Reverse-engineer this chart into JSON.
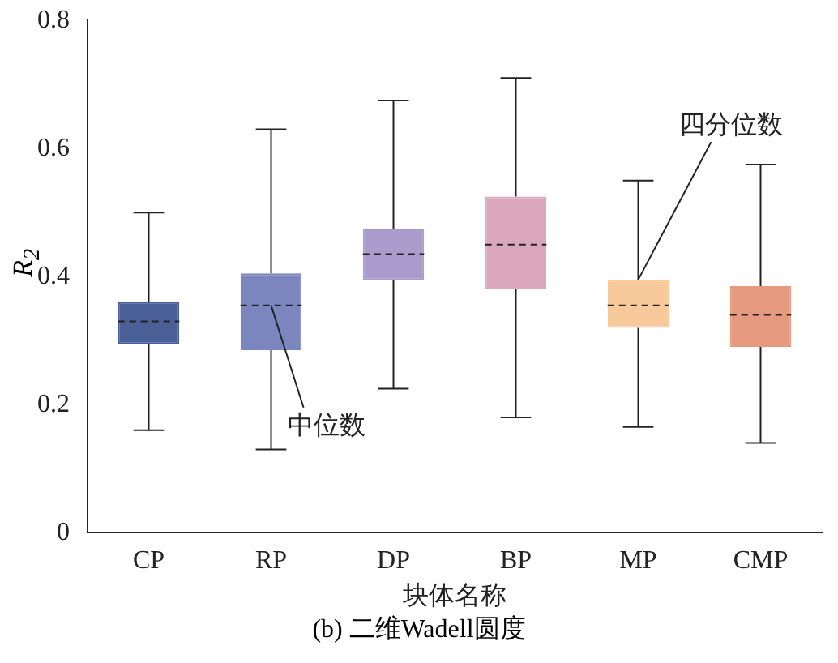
{
  "chart_data": {
    "type": "box",
    "title": "(b) 二维Wadell圆度",
    "xlabel": "块体名称",
    "ylabel": "R$_{2}$",
    "categories": [
      "CP",
      "RP",
      "DP",
      "BP",
      "MP",
      "CMP"
    ],
    "colors": [
      "#4a5f96",
      "#7b86bf",
      "#a99bcb",
      "#dba8bb",
      "#f8c99a",
      "#e59a7f"
    ],
    "boxes": [
      {
        "low": 0.16,
        "q1": 0.295,
        "median": 0.33,
        "q3": 0.36,
        "high": 0.5
      },
      {
        "low": 0.13,
        "q1": 0.285,
        "median": 0.355,
        "q3": 0.405,
        "high": 0.63
      },
      {
        "low": 0.225,
        "q1": 0.395,
        "median": 0.435,
        "q3": 0.475,
        "high": 0.675
      },
      {
        "low": 0.18,
        "q1": 0.38,
        "median": 0.45,
        "q3": 0.525,
        "high": 0.71
      },
      {
        "low": 0.165,
        "q1": 0.32,
        "median": 0.355,
        "q3": 0.395,
        "high": 0.55
      },
      {
        "low": 0.14,
        "q1": 0.29,
        "median": 0.34,
        "q3": 0.385,
        "high": 0.575
      }
    ],
    "ylim": [
      0,
      0.8
    ],
    "yticks": [
      0,
      0.2,
      0.4,
      0.6,
      0.8
    ],
    "grid": false,
    "legend": false,
    "annotations": [
      {
        "text": "中位数",
        "x": "RP",
        "y": 0.355
      },
      {
        "text": "四分位数",
        "x": "MP",
        "y": 0.395
      }
    ]
  }
}
